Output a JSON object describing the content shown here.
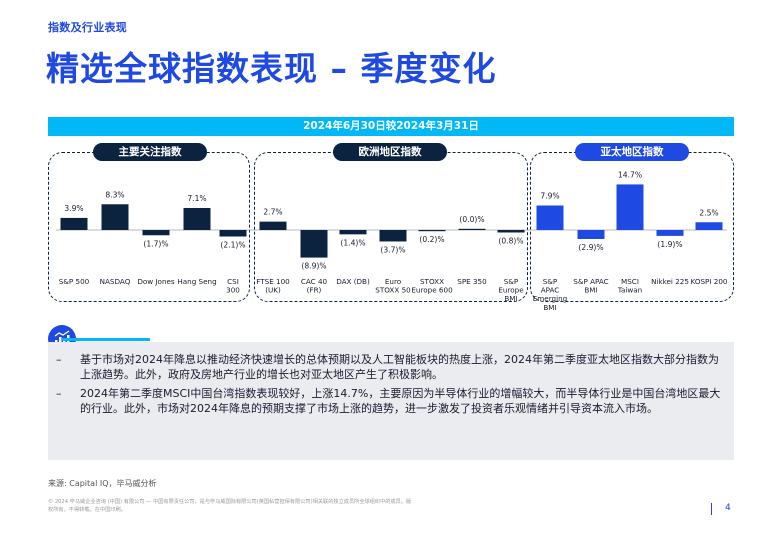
{
  "section_label": "指数及行业表现",
  "title": "精选全球指数表现 – 季度变化",
  "date_banner": "2024年6月30日较2024年3月31日",
  "groups": [
    {
      "label": "主要关注指数"
    },
    {
      "label": "欧洲地区指数"
    },
    {
      "label": "亚太地区指数"
    }
  ],
  "chart_data": {
    "type": "bar",
    "categories": [
      "S&P 500",
      "NASDAQ",
      "Dow Jones",
      "Hang Seng",
      "CSI 300",
      "FTSE 100 (UK)",
      "CAC 40 (FR)",
      "DAX (DB)",
      "Euro STOXX 50",
      "STOXX Europe 600",
      "SPE 350",
      "S&P Europe BMI",
      "S&P APAC Emerging BMI",
      "S&P APAC BMI",
      "MSCI Taiwan",
      "Nikkei 225",
      "KOSPI 200"
    ],
    "label_lines": [
      [
        "S&P 500"
      ],
      [
        "NASDAQ"
      ],
      [
        "Dow Jones"
      ],
      [
        "Hang Seng"
      ],
      [
        "CSI",
        "300"
      ],
      [
        "FTSE 100",
        "(UK)"
      ],
      [
        "CAC 40",
        "(FR)"
      ],
      [
        "DAX (DB)"
      ],
      [
        "Euro",
        "STOXX 50"
      ],
      [
        "STOXX",
        "Europe 600"
      ],
      [
        "SPE 350"
      ],
      [
        "S&P",
        "Europe",
        "BMI"
      ],
      [
        "S&P",
        "APAC",
        "Emerging",
        "BMI"
      ],
      [
        "S&P APAC",
        "BMI"
      ],
      [
        "MSCI",
        "Taiwan"
      ],
      [
        "Nikkei 225"
      ],
      [
        "KOSPI 200"
      ]
    ],
    "values": [
      3.9,
      8.3,
      -1.7,
      7.1,
      -2.1,
      2.7,
      -8.9,
      -1.4,
      -3.7,
      -0.2,
      -0.0,
      -0.8,
      7.9,
      -2.9,
      14.7,
      -1.9,
      2.5
    ],
    "value_labels": [
      "3.9%",
      "8.3%",
      "(1.7)%",
      "7.1%",
      "(2.1)%",
      "2.7%",
      "(8.9)%",
      "(1.4)%",
      "(3.7)%",
      "(0.2)%",
      "(0.0)%",
      "(0.8)%",
      "7.9%",
      "(2.9)%",
      "14.7%",
      "(1.9)%",
      "2.5%"
    ],
    "group_index": [
      0,
      0,
      0,
      0,
      0,
      1,
      1,
      1,
      1,
      1,
      1,
      1,
      2,
      2,
      2,
      2,
      2
    ],
    "colors": {
      "group0": "#0c2340",
      "group1": "#0c2340",
      "group2": "#1e49e2"
    },
    "grid": false
  },
  "commentary": [
    "基于市场对2024年降息以推动经济快速增长的总体预期以及人工智能板块的热度上涨，2024年第二季度亚太地区指数大部分指数为上涨趋势。此外，政府及房地产行业的增长也对亚太地区产生了积极影响。",
    "2024年第二季度MSCI中国台湾指数表现较好，上涨14.7%，主要原因为半导体行业的增幅较大，而半导体行业是中国台湾地区最大的行业。此外，市场对2024年降息的预期支撑了市场上涨的趋势，进一步激发了投资者乐观情绪并引导资本流入市场。"
  ],
  "bullet_marker": "–",
  "source": "来源: Capital IQ，毕马威分析",
  "copyright": "© 2024 毕马威企业咨询 (中国) 有限公司 — 中国有限责任公司，是与毕马威国际有限公司(英国私营担保有限公司)相关联的独立成员所全球组织中的成员。版权所有，不得转载。在中国印刷。",
  "page_number": "4",
  "icon": "analytics-chart-icon"
}
